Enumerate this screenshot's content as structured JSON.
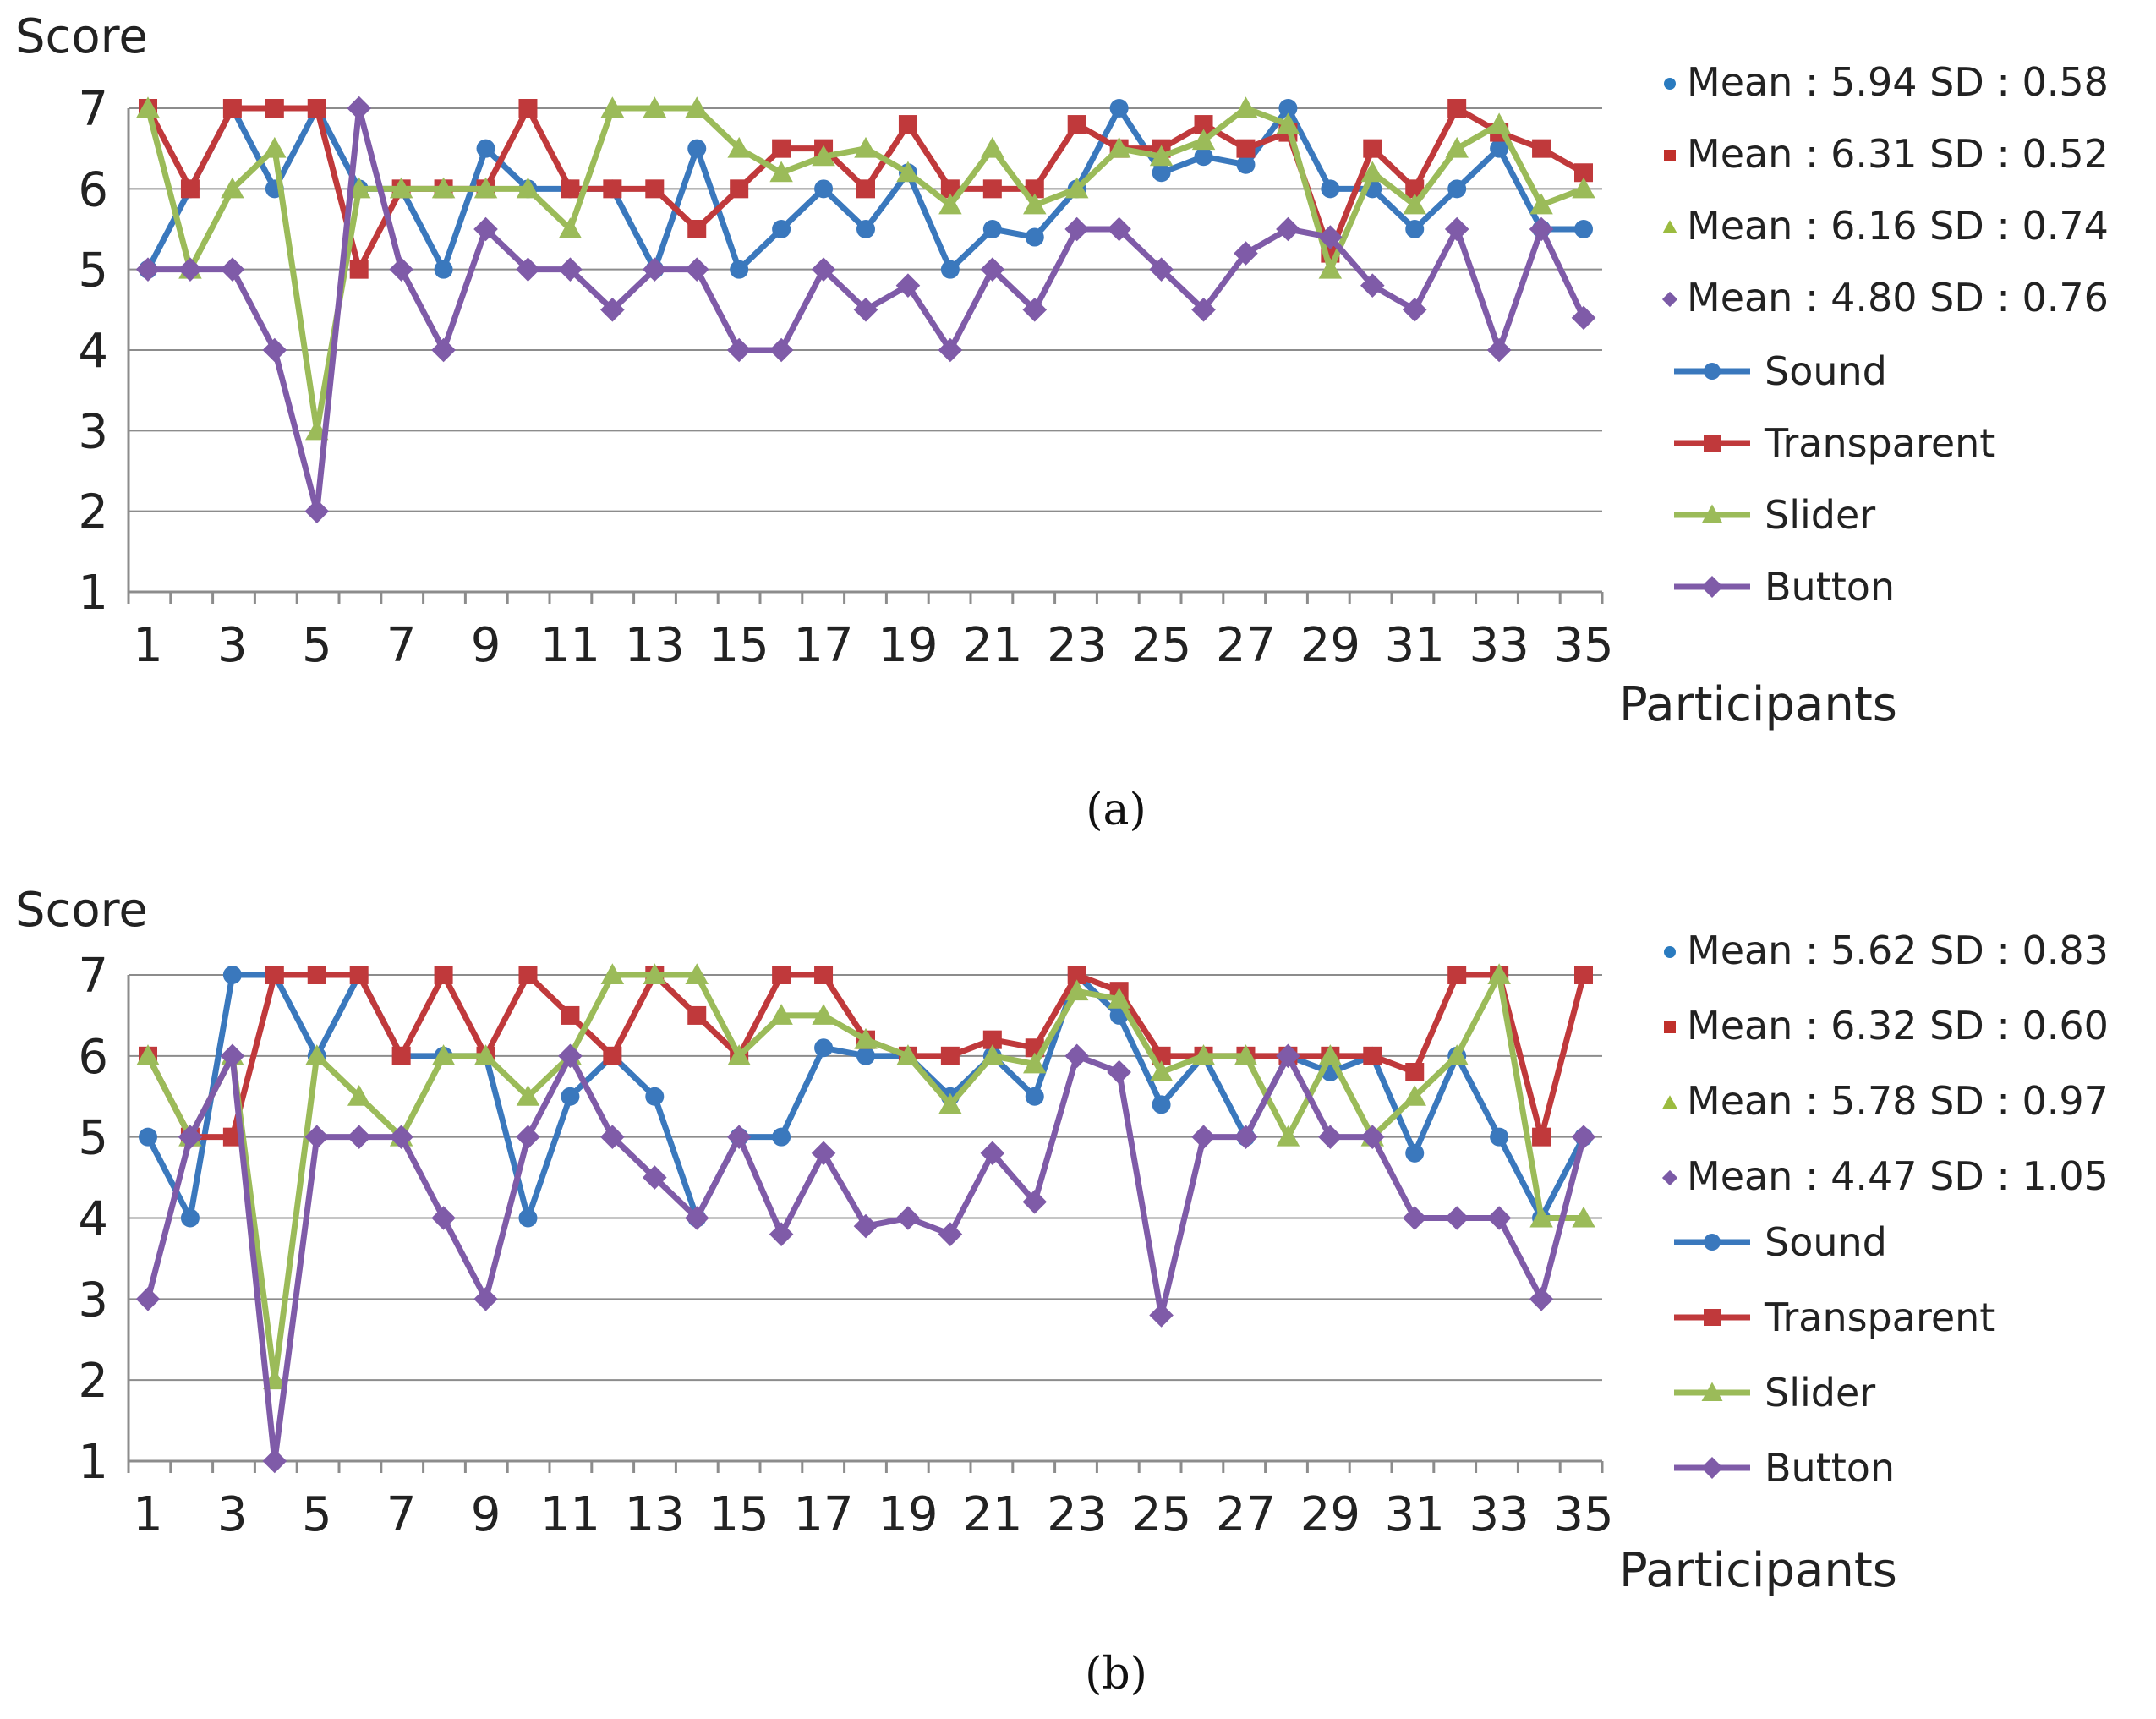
{
  "chart_data": [
    {
      "panel": "a",
      "caption": "(a)",
      "type": "line",
      "ylabel": "Score",
      "xlabel": "Participants",
      "ylim": [
        1,
        7
      ],
      "yticks": [
        "1",
        "2",
        "3",
        "4",
        "5",
        "6",
        "7"
      ],
      "xticks": [
        "1",
        "3",
        "5",
        "7",
        "9",
        "11",
        "13",
        "15",
        "17",
        "19",
        "21",
        "23",
        "25",
        "27",
        "29",
        "31",
        "33",
        "35"
      ],
      "x": [
        1,
        2,
        3,
        4,
        5,
        6,
        7,
        8,
        9,
        10,
        11,
        12,
        13,
        14,
        15,
        16,
        17,
        18,
        19,
        20,
        21,
        22,
        23,
        24,
        25,
        26,
        27,
        28,
        29,
        30,
        31,
        32,
        33,
        34,
        35
      ],
      "stats": [
        {
          "text": "Mean : 5.94 SD : 0.58",
          "color": "#2a7bbf"
        },
        {
          "text": "Mean : 6.31 SD : 0.52",
          "color": "#c0302b"
        },
        {
          "text": "Mean : 6.16 SD : 0.74",
          "color": "#9bbb3f"
        },
        {
          "text": "Mean : 4.80 SD : 0.76",
          "color": "#7b5aa6"
        }
      ],
      "series": [
        {
          "name": "Sound",
          "color": "#3a78bd",
          "marker": "circle",
          "values": [
            5,
            6,
            7,
            6,
            7,
            6,
            6,
            5,
            6.5,
            6,
            6,
            6,
            5,
            6.5,
            5,
            5.5,
            6,
            5.5,
            6.2,
            5,
            5.5,
            5.4,
            6,
            7,
            6.2,
            6.4,
            6.3,
            7,
            6,
            6,
            5.5,
            6,
            6.5,
            5.5,
            5.5
          ]
        },
        {
          "name": "Transparent",
          "color": "#c0393b",
          "marker": "square",
          "values": [
            7,
            6,
            7,
            7,
            7,
            5,
            6,
            6,
            6,
            7,
            6,
            6,
            6,
            5.5,
            6,
            6.5,
            6.5,
            6,
            6.8,
            6,
            6,
            6,
            6.8,
            6.5,
            6.5,
            6.8,
            6.5,
            6.7,
            5.2,
            6.5,
            6,
            7,
            6.7,
            6.5,
            6.2
          ]
        },
        {
          "name": "Slider",
          "color": "#9bbb59",
          "marker": "triangle",
          "values": [
            7,
            5,
            6,
            6.5,
            3,
            6,
            6,
            6,
            6,
            6,
            5.5,
            7,
            7,
            7,
            6.5,
            6.2,
            6.4,
            6.5,
            6.2,
            5.8,
            6.5,
            5.8,
            6,
            6.5,
            6.4,
            6.6,
            7,
            6.8,
            5,
            6.2,
            5.8,
            6.5,
            6.8,
            5.8,
            6
          ]
        },
        {
          "name": "Button",
          "color": "#7f5ba8",
          "marker": "diamond",
          "values": [
            5,
            5,
            5,
            4,
            2,
            7,
            5,
            4,
            5.5,
            5,
            5,
            4.5,
            5,
            5,
            4,
            4,
            5,
            4.5,
            4.8,
            4,
            5,
            4.5,
            5.5,
            5.5,
            5,
            4.5,
            5.2,
            5.5,
            5.4,
            4.8,
            4.5,
            5.5,
            4,
            5.5,
            4.4
          ]
        }
      ]
    },
    {
      "panel": "b",
      "caption": "(b)",
      "type": "line",
      "ylabel": "Score",
      "xlabel": "Participants",
      "ylim": [
        1,
        7
      ],
      "yticks": [
        "1",
        "2",
        "3",
        "4",
        "5",
        "6",
        "7"
      ],
      "xticks": [
        "1",
        "3",
        "5",
        "7",
        "9",
        "11",
        "13",
        "15",
        "17",
        "19",
        "21",
        "23",
        "25",
        "27",
        "29",
        "31",
        "33",
        "35"
      ],
      "x": [
        1,
        2,
        3,
        4,
        5,
        6,
        7,
        8,
        9,
        10,
        11,
        12,
        13,
        14,
        15,
        16,
        17,
        18,
        19,
        20,
        21,
        22,
        23,
        24,
        25,
        26,
        27,
        28,
        29,
        30,
        31,
        32,
        33,
        34,
        35
      ],
      "stats": [
        {
          "text": "Mean : 5.62 SD : 0.83",
          "color": "#2a7bbf"
        },
        {
          "text": "Mean : 6.32 SD : 0.60",
          "color": "#c0302b"
        },
        {
          "text": "Mean : 5.78 SD : 0.97",
          "color": "#9bbb3f"
        },
        {
          "text": "Mean : 4.47 SD : 1.05",
          "color": "#7b5aa6"
        }
      ],
      "series": [
        {
          "name": "Sound",
          "color": "#3a78bd",
          "marker": "circle",
          "values": [
            5,
            4,
            7,
            7,
            6,
            7,
            6,
            6,
            6,
            4,
            5.5,
            6,
            5.5,
            4,
            5,
            5,
            6.1,
            6,
            6,
            5.5,
            6,
            5.5,
            7,
            6.5,
            5.4,
            6,
            5,
            6,
            5.8,
            6,
            4.8,
            6,
            5,
            4,
            5
          ]
        },
        {
          "name": "Transparent",
          "color": "#c0393b",
          "marker": "square",
          "values": [
            6,
            5,
            5,
            7,
            7,
            7,
            6,
            7,
            6,
            7,
            6.5,
            6,
            7,
            6.5,
            6,
            7,
            7,
            6.2,
            6,
            6,
            6.2,
            6.1,
            7,
            6.8,
            6,
            6,
            6,
            6,
            6,
            6,
            5.8,
            7,
            7,
            5,
            7
          ]
        },
        {
          "name": "Slider",
          "color": "#9bbb59",
          "marker": "triangle",
          "values": [
            6,
            5,
            6,
            2,
            6,
            5.5,
            5,
            6,
            6,
            5.5,
            6,
            7,
            7,
            7,
            6,
            6.5,
            6.5,
            6.2,
            6,
            5.4,
            6,
            5.9,
            6.8,
            6.7,
            5.8,
            6,
            6,
            5,
            6,
            5,
            5.5,
            6,
            7,
            4,
            4
          ]
        },
        {
          "name": "Button",
          "color": "#7f5ba8",
          "marker": "diamond",
          "values": [
            3,
            5,
            6,
            1,
            5,
            5,
            5,
            4,
            3,
            5,
            6,
            5,
            4.5,
            4,
            5,
            3.8,
            4.8,
            3.9,
            4,
            3.8,
            4.8,
            4.2,
            6,
            5.8,
            2.8,
            5,
            5,
            6,
            5,
            5,
            4,
            4,
            4,
            3,
            5
          ]
        }
      ]
    }
  ]
}
